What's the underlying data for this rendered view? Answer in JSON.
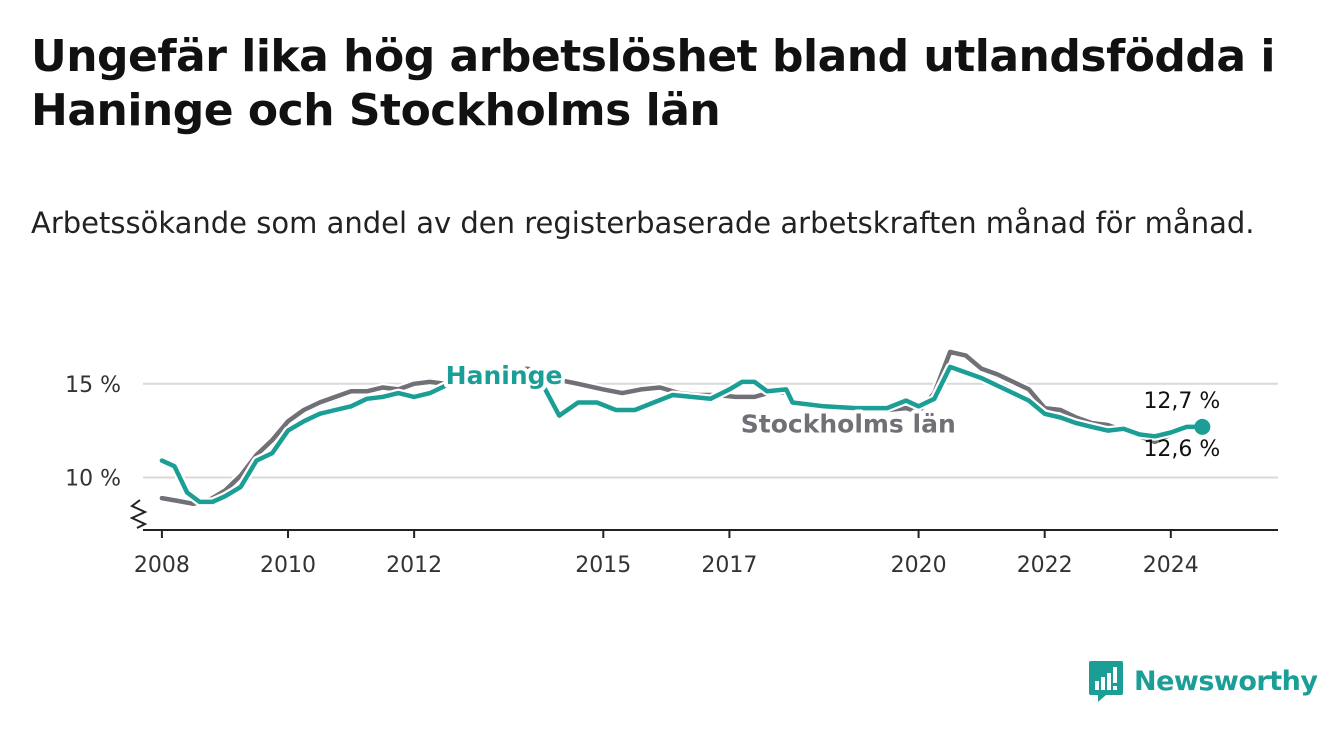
{
  "title": "Ungefär lika hög arbetslöshet bland utlandsfödda i Haninge och Stockholms län",
  "subtitle": "Arbetssökande som andel av den registerbaserade arbetskraften månad för månad.",
  "logo": {
    "name": "Newsworthy",
    "icon": "bar-chart-speech-bubble-icon",
    "color": "#1a9e96"
  },
  "colors": {
    "haninge": "#1a9e96",
    "stockholm": "#717076",
    "grid": "#d9d9d9",
    "axis": "#222222"
  },
  "chart_data": {
    "type": "line",
    "title": "Ungefär lika hög arbetslöshet bland utlandsfödda i Haninge och Stockholms län",
    "xlabel": "",
    "ylabel": "",
    "xlim": [
      2007.7,
      2025.7
    ],
    "ylim": [
      7.2,
      16.8
    ],
    "x_ticks": [
      2008,
      2010,
      2012,
      2015,
      2017,
      2020,
      2022,
      2024
    ],
    "x_tick_labels": [
      "2008",
      "2010",
      "2012",
      "2015",
      "2017",
      "2020",
      "2022",
      "2024"
    ],
    "y_ticks": [
      10,
      15
    ],
    "y_tick_labels": [
      "10 %",
      "15 %"
    ],
    "grid": true,
    "axis_break": true,
    "series": [
      {
        "name": "Stockholms län",
        "label": "Stockholms län",
        "end_label": "12,6 %",
        "color": "#717076",
        "points": [
          [
            2008.0,
            8.9
          ],
          [
            2008.25,
            8.75
          ],
          [
            2008.5,
            8.6
          ],
          [
            2008.75,
            8.8
          ],
          [
            2009.0,
            9.3
          ],
          [
            2009.25,
            10.1
          ],
          [
            2009.5,
            11.2
          ],
          [
            2009.75,
            12.0
          ],
          [
            2010.0,
            13.0
          ],
          [
            2010.25,
            13.6
          ],
          [
            2010.5,
            14.0
          ],
          [
            2010.75,
            14.3
          ],
          [
            2011.0,
            14.6
          ],
          [
            2011.25,
            14.6
          ],
          [
            2011.5,
            14.8
          ],
          [
            2011.75,
            14.7
          ],
          [
            2012.0,
            15.0
          ],
          [
            2012.25,
            15.1
          ],
          [
            2012.5,
            15.0
          ],
          [
            2012.75,
            15.1
          ],
          [
            2013.0,
            15.4
          ],
          [
            2013.5,
            15.7
          ],
          [
            2013.8,
            15.8
          ],
          [
            2014.0,
            15.7
          ],
          [
            2014.3,
            15.2
          ],
          [
            2014.6,
            15.0
          ],
          [
            2015.0,
            14.7
          ],
          [
            2015.3,
            14.5
          ],
          [
            2015.6,
            14.7
          ],
          [
            2015.9,
            14.8
          ],
          [
            2016.2,
            14.5
          ],
          [
            2016.5,
            14.4
          ],
          [
            2016.8,
            14.4
          ],
          [
            2017.1,
            14.3
          ],
          [
            2017.4,
            14.3
          ],
          [
            2017.7,
            14.6
          ],
          [
            2017.9,
            14.5
          ],
          [
            2018.0,
            13.9
          ],
          [
            2018.5,
            13.7
          ],
          [
            2019.0,
            13.6
          ],
          [
            2019.5,
            13.6
          ],
          [
            2019.8,
            13.7
          ],
          [
            2020.0,
            13.5
          ],
          [
            2020.25,
            14.5
          ],
          [
            2020.5,
            16.7
          ],
          [
            2020.75,
            16.5
          ],
          [
            2021.0,
            15.8
          ],
          [
            2021.25,
            15.5
          ],
          [
            2021.5,
            15.1
          ],
          [
            2021.75,
            14.7
          ],
          [
            2022.0,
            13.7
          ],
          [
            2022.25,
            13.6
          ],
          [
            2022.5,
            13.2
          ],
          [
            2022.75,
            12.9
          ],
          [
            2023.0,
            12.8
          ],
          [
            2023.25,
            12.5
          ],
          [
            2023.5,
            12.2
          ],
          [
            2023.75,
            11.9
          ],
          [
            2024.0,
            12.3
          ],
          [
            2024.25,
            12.6
          ],
          [
            2024.5,
            12.6
          ]
        ]
      },
      {
        "name": "Haninge",
        "label": "Haninge",
        "end_label": "12,7 %",
        "color": "#1a9e96",
        "points": [
          [
            2008.0,
            10.9
          ],
          [
            2008.2,
            10.6
          ],
          [
            2008.4,
            9.2
          ],
          [
            2008.6,
            8.7
          ],
          [
            2008.8,
            8.7
          ],
          [
            2009.0,
            9.0
          ],
          [
            2009.25,
            9.5
          ],
          [
            2009.5,
            10.9
          ],
          [
            2009.75,
            11.3
          ],
          [
            2010.0,
            12.5
          ],
          [
            2010.25,
            13.0
          ],
          [
            2010.5,
            13.4
          ],
          [
            2010.75,
            13.6
          ],
          [
            2011.0,
            13.8
          ],
          [
            2011.25,
            14.2
          ],
          [
            2011.5,
            14.3
          ],
          [
            2011.75,
            14.5
          ],
          [
            2012.0,
            14.3
          ],
          [
            2012.25,
            14.5
          ],
          [
            2012.5,
            14.9
          ],
          [
            2012.75,
            15.2
          ],
          [
            2013.0,
            15.3
          ],
          [
            2013.5,
            15.5
          ],
          [
            2014.0,
            15.2
          ],
          [
            2014.3,
            13.3
          ],
          [
            2014.6,
            14.0
          ],
          [
            2014.9,
            14.0
          ],
          [
            2015.2,
            13.6
          ],
          [
            2015.5,
            13.6
          ],
          [
            2015.8,
            14.0
          ],
          [
            2016.1,
            14.4
          ],
          [
            2016.4,
            14.3
          ],
          [
            2016.7,
            14.2
          ],
          [
            2017.0,
            14.7
          ],
          [
            2017.2,
            15.1
          ],
          [
            2017.4,
            15.1
          ],
          [
            2017.6,
            14.6
          ],
          [
            2017.9,
            14.7
          ],
          [
            2018.0,
            14.0
          ],
          [
            2018.5,
            13.8
          ],
          [
            2019.0,
            13.7
          ],
          [
            2019.5,
            13.7
          ],
          [
            2019.8,
            14.1
          ],
          [
            2020.0,
            13.8
          ],
          [
            2020.25,
            14.2
          ],
          [
            2020.5,
            15.9
          ],
          [
            2020.75,
            15.6
          ],
          [
            2021.0,
            15.3
          ],
          [
            2021.25,
            14.9
          ],
          [
            2021.5,
            14.5
          ],
          [
            2021.75,
            14.1
          ],
          [
            2022.0,
            13.4
          ],
          [
            2022.25,
            13.2
          ],
          [
            2022.5,
            12.9
          ],
          [
            2022.75,
            12.7
          ],
          [
            2023.0,
            12.5
          ],
          [
            2023.25,
            12.6
          ],
          [
            2023.5,
            12.3
          ],
          [
            2023.75,
            12.2
          ],
          [
            2024.0,
            12.4
          ],
          [
            2024.25,
            12.7
          ],
          [
            2024.5,
            12.7
          ]
        ]
      }
    ]
  }
}
